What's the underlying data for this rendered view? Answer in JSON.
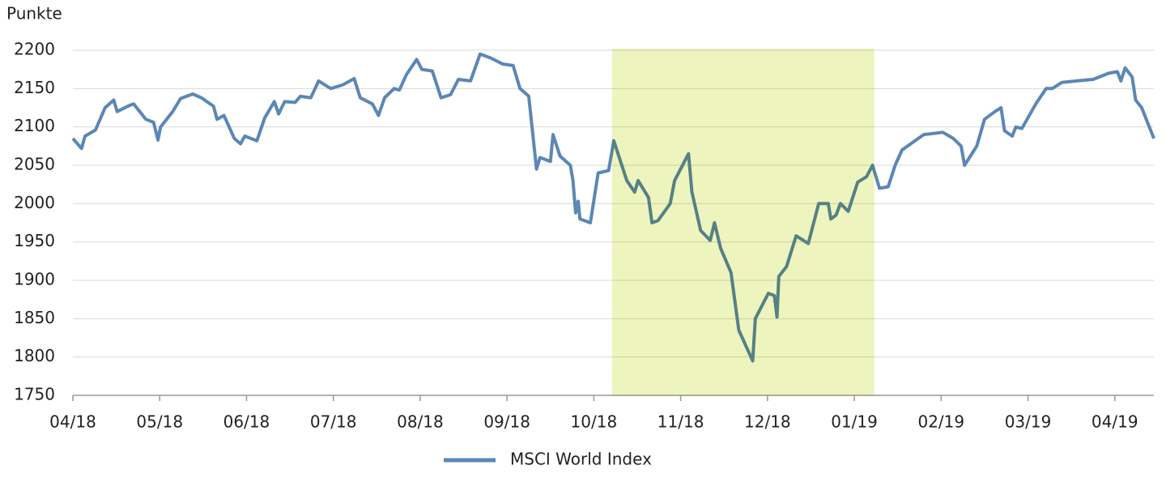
{
  "chart_data": {
    "type": "line",
    "y_label": "Punkte",
    "x": [
      0,
      0.1,
      0.14,
      0.26,
      0.37,
      0.47,
      0.51,
      0.65,
      0.7,
      0.84,
      0.93,
      0.98,
      1.01,
      1.15,
      1.24,
      1.38,
      1.48,
      1.62,
      1.66,
      1.74,
      1.86,
      1.93,
      1.98,
      2.12,
      2.21,
      2.32,
      2.37,
      2.44,
      2.56,
      2.62,
      2.74,
      2.83,
      2.97,
      3.11,
      3.24,
      3.31,
      3.45,
      3.52,
      3.59,
      3.7,
      3.76,
      3.84,
      3.96,
      4.02,
      4.14,
      4.24,
      4.35,
      4.44,
      4.58,
      4.69,
      4.81,
      4.95,
      5.07,
      5.15,
      5.25,
      5.34,
      5.38,
      5.5,
      5.53,
      5.61,
      5.73,
      5.76,
      5.79,
      5.82,
      5.84,
      5.96,
      6.05,
      6.17,
      6.23,
      6.38,
      6.47,
      6.51,
      6.63,
      6.67,
      6.74,
      6.88,
      6.93,
      7.09,
      7.13,
      7.23,
      7.34,
      7.39,
      7.46,
      7.58,
      7.67,
      7.83,
      7.86,
      8.01,
      8.08,
      8.11,
      8.13,
      8.22,
      8.33,
      8.47,
      8.59,
      8.7,
      8.73,
      8.79,
      8.84,
      8.93,
      9.04,
      9.14,
      9.21,
      9.29,
      9.39,
      9.47,
      9.55,
      9.8,
      10.02,
      10.14,
      10.23,
      10.27,
      10.41,
      10.5,
      10.62,
      10.69,
      10.73,
      10.82,
      10.86,
      10.93,
      11.09,
      11.21,
      11.28,
      11.39,
      11.56,
      11.75,
      11.82,
      11.93,
      12.03,
      12.07,
      12.12,
      12.2,
      12.24,
      12.31,
      12.45
    ],
    "series": [
      {
        "name": "MSCI World Index",
        "color": "#5b87b5",
        "values": [
          2085,
          2072,
          2088,
          2096,
          2125,
          2135,
          2120,
          2128,
          2130,
          2110,
          2106,
          2083,
          2100,
          2120,
          2137,
          2143,
          2138,
          2127,
          2110,
          2115,
          2085,
          2078,
          2088,
          2082,
          2112,
          2133,
          2117,
          2133,
          2132,
          2140,
          2138,
          2160,
          2150,
          2155,
          2163,
          2138,
          2130,
          2115,
          2138,
          2150,
          2148,
          2168,
          2188,
          2175,
          2173,
          2138,
          2142,
          2162,
          2160,
          2195,
          2190,
          2182,
          2180,
          2150,
          2140,
          2045,
          2060,
          2055,
          2090,
          2062,
          2050,
          2030,
          1988,
          2003,
          1980,
          1975,
          2040,
          2043,
          2082,
          2030,
          2015,
          2030,
          2008,
          1975,
          1978,
          2000,
          2030,
          2065,
          2015,
          1965,
          1952,
          1975,
          1942,
          1910,
          1835,
          1795,
          1850,
          1883,
          1880,
          1852,
          1905,
          1918,
          1958,
          1948,
          2000,
          2000,
          1980,
          1985,
          2000,
          1990,
          2028,
          2035,
          2050,
          2020,
          2022,
          2050,
          2070,
          2090,
          2093,
          2085,
          2075,
          2050,
          2075,
          2110,
          2120,
          2125,
          2095,
          2088,
          2100,
          2098,
          2130,
          2150,
          2150,
          2158,
          2160,
          2162,
          2165,
          2170,
          2172,
          2160,
          2177,
          2165,
          2135,
          2125,
          2085
        ]
      }
    ],
    "xlim": [
      0,
      12.45
    ],
    "xticks": [
      {
        "value": 0,
        "label": "04/18"
      },
      {
        "value": 1,
        "label": "05/18"
      },
      {
        "value": 2,
        "label": "06/18"
      },
      {
        "value": 3,
        "label": "07/18"
      },
      {
        "value": 4,
        "label": "08/18"
      },
      {
        "value": 5,
        "label": "09/18"
      },
      {
        "value": 6,
        "label": "10/18"
      },
      {
        "value": 7,
        "label": "11/18"
      },
      {
        "value": 8,
        "label": "12/18"
      },
      {
        "value": 9,
        "label": "01/19"
      },
      {
        "value": 10,
        "label": "02/19"
      },
      {
        "value": 11,
        "label": "03/19"
      },
      {
        "value": 12,
        "label": "04/19"
      }
    ],
    "ylim": [
      1750,
      2200
    ],
    "yticks": [
      1750,
      1800,
      1850,
      1900,
      1950,
      2000,
      2050,
      2100,
      2150,
      2200
    ],
    "grid": true,
    "shaded_range": [
      6.21,
      9.23
    ],
    "shade_color": "#eef4bd",
    "legend": "bottom"
  }
}
